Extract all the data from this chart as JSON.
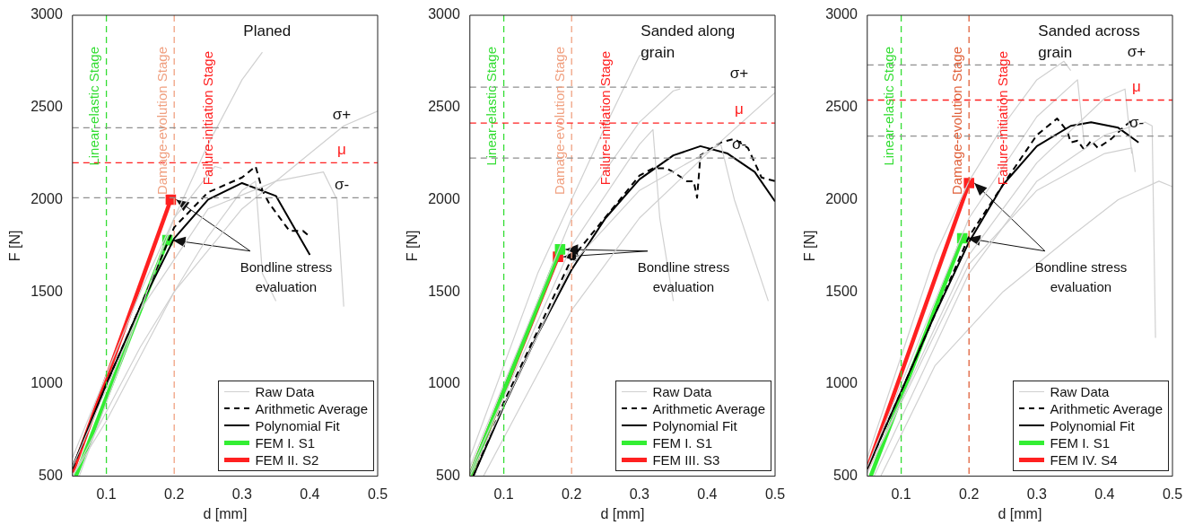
{
  "chart_data": [
    {
      "type": "line",
      "title": "Planed",
      "xlabel": "d [mm]",
      "ylabel": "F [N]",
      "xlim": [
        0.05,
        0.5
      ],
      "xticks": [
        0.1,
        0.2,
        0.3,
        0.4,
        0.5
      ],
      "ylim": [
        500,
        3000
      ],
      "yticks": [
        500,
        1000,
        1500,
        2000,
        2500,
        3000
      ],
      "grid": false,
      "legend": "bottom right",
      "series": [
        {
          "name": "Raw Data",
          "color": "#d0d0d0",
          "x": [
            0.05,
            0.15,
            0.2,
            0.25,
            0.3,
            0.33
          ],
          "values": [
            600,
            1500,
            1900,
            2300,
            2650,
            2800
          ]
        },
        {
          "color": "#d0d0d0",
          "x": [
            0.05,
            0.1,
            0.2,
            0.3,
            0.4,
            0.45,
            0.5
          ],
          "values": [
            500,
            800,
            1500,
            1950,
            2250,
            2400,
            2480
          ]
        },
        {
          "color": "#d0d0d0",
          "x": [
            0.05,
            0.15,
            0.25,
            0.35,
            0.42,
            0.44,
            0.45
          ],
          "values": [
            550,
            1400,
            1950,
            2100,
            2150,
            2000,
            1420
          ]
        },
        {
          "color": "#d0d0d0",
          "x": [
            0.05,
            0.15,
            0.25,
            0.3,
            0.32,
            0.33,
            0.35
          ],
          "values": [
            500,
            1200,
            1800,
            2050,
            2100,
            1600,
            1450
          ]
        },
        {
          "color": "#d0d0d0",
          "x": [
            0.06,
            0.2,
            0.26,
            0.27
          ],
          "values": [
            500,
            1900,
            2180,
            2170
          ]
        },
        {
          "name": "Arithmetic Average",
          "color": "#000000",
          "line_style": "dashed",
          "x": [
            0.05,
            0.1,
            0.15,
            0.2,
            0.25,
            0.3,
            0.32,
            0.33,
            0.34,
            0.37,
            0.39,
            0.4
          ],
          "values": [
            540,
            1000,
            1420,
            1850,
            2040,
            2120,
            2180,
            2050,
            1980,
            1830,
            1830,
            1800
          ]
        },
        {
          "name": "Polynomial Fit",
          "color": "#000000",
          "x": [
            0.05,
            0.1,
            0.15,
            0.2,
            0.25,
            0.3,
            0.35,
            0.4
          ],
          "values": [
            550,
            1000,
            1420,
            1790,
            2000,
            2090,
            2020,
            1700
          ]
        },
        {
          "name": "FEM I. S1",
          "color": "#33ee33",
          "marker": "square",
          "x": [
            0.055,
            0.19
          ],
          "values": [
            500,
            1780
          ]
        },
        {
          "name": "FEM II. S2",
          "color": "#ff2020",
          "marker": "square",
          "x": [
            0.05,
            0.195
          ],
          "values": [
            520,
            2000
          ]
        }
      ],
      "ref_lines": [
        {
          "axis": "x",
          "value": 0.1,
          "label": "Linear-elastic Stage",
          "color": "#33dd33",
          "line_style": "dashed"
        },
        {
          "axis": "x",
          "value": 0.2,
          "label": "Damage-evolution Stage",
          "color": "#f0a080",
          "line_style": "dashed"
        },
        {
          "axis": "y",
          "value": 2390,
          "label": "σ+",
          "color": "#909090",
          "line_style": "dashed"
        },
        {
          "axis": "y",
          "value": 2200,
          "label": "μ",
          "color": "#ff2020",
          "line_style": "dashed"
        },
        {
          "axis": "y",
          "value": 2010,
          "label": "σ-",
          "color": "#909090",
          "line_style": "dashed"
        }
      ],
      "annotations": [
        "Failure-initiation Stage",
        {
          "text": "Bondline stress evaluation",
          "x": 0.195,
          "y": 2000
        }
      ]
    },
    {
      "type": "line",
      "title": "Sanded along grain",
      "xlabel": "d [mm]",
      "ylabel": "F [N]",
      "xlim": [
        0.05,
        0.5
      ],
      "xticks": [
        0.1,
        0.2,
        0.3,
        0.4,
        0.5
      ],
      "ylim": [
        500,
        3000
      ],
      "yticks": [
        500,
        1000,
        1500,
        2000,
        2500,
        3000
      ],
      "grid": false,
      "legend": "bottom right",
      "series": [
        {
          "name": "Raw Data",
          "color": "#d0d0d0",
          "x": [
            0.05,
            0.15,
            0.2,
            0.25,
            0.3,
            0.32
          ],
          "values": [
            600,
            1600,
            2000,
            2400,
            2780,
            2820
          ]
        },
        {
          "color": "#d0d0d0",
          "x": [
            0.05,
            0.2,
            0.3,
            0.35,
            0.36
          ],
          "values": [
            550,
            1900,
            2420,
            2590,
            2600
          ]
        },
        {
          "color": "#d0d0d0",
          "x": [
            0.07,
            0.2,
            0.3,
            0.4,
            0.5
          ],
          "values": [
            500,
            1400,
            1900,
            2250,
            2580
          ]
        },
        {
          "color": "#d0d0d0",
          "x": [
            0.05,
            0.2,
            0.3,
            0.32,
            0.33,
            0.35
          ],
          "values": [
            520,
            1750,
            2300,
            2380,
            1900,
            1450
          ]
        },
        {
          "color": "#d0d0d0",
          "x": [
            0.05,
            0.2,
            0.3,
            0.42,
            0.44,
            0.49
          ],
          "values": [
            500,
            1650,
            2050,
            2300,
            2000,
            1450
          ]
        },
        {
          "name": "Arithmetic Average",
          "color": "#000000",
          "line_style": "dashed",
          "x": [
            0.055,
            0.1,
            0.2,
            0.3,
            0.32,
            0.34,
            0.35,
            0.37,
            0.38,
            0.385,
            0.39,
            0.42,
            0.44,
            0.46,
            0.48,
            0.5
          ],
          "values": [
            500,
            900,
            1680,
            2130,
            2170,
            2170,
            2150,
            2100,
            2100,
            2010,
            2240,
            2310,
            2330,
            2280,
            2120,
            2100
          ]
        },
        {
          "name": "Polynomial Fit",
          "color": "#000000",
          "x": [
            0.055,
            0.1,
            0.15,
            0.2,
            0.25,
            0.3,
            0.35,
            0.39,
            0.43,
            0.47,
            0.5
          ],
          "values": [
            500,
            880,
            1270,
            1620,
            1900,
            2110,
            2240,
            2290,
            2250,
            2150,
            1990
          ]
        },
        {
          "name": "FEM I. S1",
          "color": "#33ee33",
          "marker": "square",
          "x": [
            0.05,
            0.183
          ],
          "values": [
            500,
            1730
          ]
        },
        {
          "name": "FEM III. S3",
          "color": "#ff2020",
          "marker": "square",
          "x": [
            0.05,
            0.18
          ],
          "values": [
            500,
            1690
          ]
        }
      ],
      "ref_lines": [
        {
          "axis": "x",
          "value": 0.1,
          "label": "Linear-elastic Stage",
          "color": "#33dd33",
          "line_style": "dashed"
        },
        {
          "axis": "x",
          "value": 0.2,
          "label": "Damage-evolution Stage",
          "color": "#f0a080",
          "line_style": "dashed"
        },
        {
          "axis": "y",
          "value": 2610,
          "label": "σ+",
          "color": "#909090",
          "line_style": "dashed"
        },
        {
          "axis": "y",
          "value": 2415,
          "label": "μ",
          "color": "#ff2020",
          "line_style": "dashed"
        },
        {
          "axis": "y",
          "value": 2225,
          "label": "σ-",
          "color": "#909090",
          "line_style": "dashed"
        }
      ],
      "annotations": [
        "Failure-initiation Stage",
        {
          "text": "Bondline stress evaluation",
          "x": 0.183,
          "y": 1730
        }
      ]
    },
    {
      "type": "line",
      "title": "Sanded across grain",
      "xlabel": "d [mm]",
      "ylabel": "F [N]",
      "xlim": [
        0.05,
        0.5
      ],
      "xticks": [
        0.1,
        0.2,
        0.3,
        0.4,
        0.5
      ],
      "ylim": [
        500,
        3000
      ],
      "yticks": [
        500,
        1000,
        1500,
        2000,
        2500,
        3000
      ],
      "grid": false,
      "legend": "bottom right",
      "series": [
        {
          "name": "Raw Data",
          "color": "#d0d0d0",
          "x": [
            0.05,
            0.15,
            0.2,
            0.25,
            0.3,
            0.34,
            0.35
          ],
          "values": [
            600,
            1700,
            2100,
            2400,
            2650,
            2750,
            2700
          ]
        },
        {
          "color": "#d0d0d0",
          "x": [
            0.05,
            0.2,
            0.3,
            0.36,
            0.37
          ],
          "values": [
            550,
            1900,
            2450,
            2650,
            2300
          ]
        },
        {
          "color": "#d0d0d0",
          "x": [
            0.05,
            0.2,
            0.3,
            0.4,
            0.43,
            0.44
          ],
          "values": [
            520,
            1700,
            2200,
            2550,
            2600,
            2250
          ]
        },
        {
          "color": "#d0d0d0",
          "x": [
            0.07,
            0.15,
            0.25,
            0.35,
            0.42,
            0.48,
            0.5
          ],
          "values": [
            500,
            1100,
            1500,
            1800,
            2000,
            2100,
            2070
          ]
        },
        {
          "color": "#d0d0d0",
          "x": [
            0.05,
            0.2,
            0.3,
            0.4,
            0.44,
            0.445
          ],
          "values": [
            520,
            1650,
            2050,
            2250,
            2280,
            2150
          ]
        },
        {
          "color": "#d0d0d0",
          "x": [
            0.06,
            0.2,
            0.3,
            0.4,
            0.46,
            0.47,
            0.475
          ],
          "values": [
            500,
            1600,
            2100,
            2350,
            2420,
            2400,
            1250
          ]
        },
        {
          "name": "Arithmetic Average",
          "color": "#000000",
          "line_style": "dashed",
          "x": [
            0.05,
            0.1,
            0.2,
            0.25,
            0.3,
            0.33,
            0.345,
            0.35,
            0.36,
            0.37,
            0.38,
            0.39,
            0.41,
            0.43,
            0.44
          ],
          "values": [
            540,
            960,
            1800,
            2080,
            2350,
            2440,
            2370,
            2310,
            2320,
            2270,
            2320,
            2280,
            2330,
            2400,
            2430
          ]
        },
        {
          "name": "Polynomial Fit",
          "color": "#000000",
          "x": [
            0.05,
            0.1,
            0.15,
            0.2,
            0.25,
            0.3,
            0.35,
            0.38,
            0.42,
            0.45
          ],
          "values": [
            540,
            960,
            1380,
            1770,
            2080,
            2290,
            2400,
            2420,
            2390,
            2310
          ]
        },
        {
          "name": "FEM I. S1",
          "color": "#33ee33",
          "marker": "square",
          "x": [
            0.055,
            0.19
          ],
          "values": [
            500,
            1790
          ]
        },
        {
          "name": "FEM IV. S4",
          "color": "#ff2020",
          "marker": "square",
          "x": [
            0.05,
            0.2
          ],
          "values": [
            540,
            2090
          ]
        }
      ],
      "ref_lines": [
        {
          "axis": "x",
          "value": 0.1,
          "label": "Linear-elastic Stage",
          "color": "#33dd33",
          "line_style": "dashed"
        },
        {
          "axis": "x",
          "value": 0.2,
          "label": "Damage-evolution Stage",
          "color": "#e0603a",
          "line_style": "dashed"
        },
        {
          "axis": "y",
          "value": 2730,
          "label": "σ+",
          "color": "#909090",
          "line_style": "dashed"
        },
        {
          "axis": "y",
          "value": 2540,
          "label": "μ",
          "color": "#ff2020",
          "line_style": "dashed"
        },
        {
          "axis": "y",
          "value": 2345,
          "label": "σ-",
          "color": "#909090",
          "line_style": "dashed"
        }
      ],
      "annotations": [
        "Failure-initiation Stage",
        {
          "text": "Bondline stress evaluation",
          "x": 0.2,
          "y": 2090
        }
      ]
    }
  ]
}
